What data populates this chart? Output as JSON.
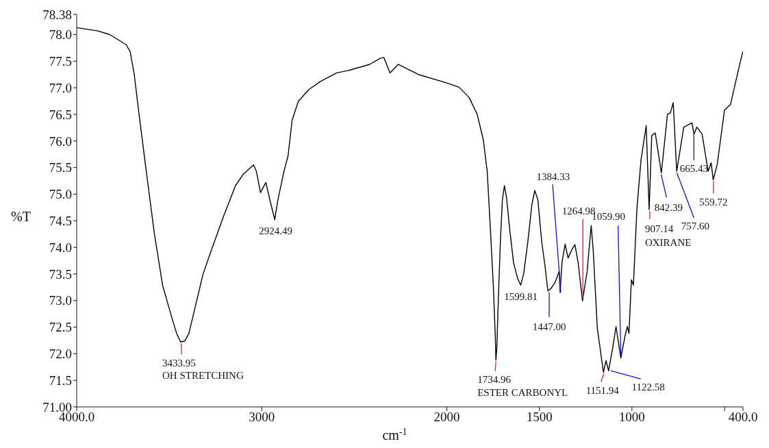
{
  "chart_data": {
    "type": "line",
    "xlabel": "cm$^{-1}$",
    "ylabel": "%T",
    "xlim": [
      4000,
      400
    ],
    "ylim": [
      71,
      78.38
    ],
    "xticks": [
      {
        "value": 4000,
        "label": "4000.0"
      },
      3000,
      2000,
      1500,
      1000,
      {
        "value": 500,
        "label": null
      },
      {
        "value": 400,
        "label": "400.0"
      }
    ],
    "yticks": [
      {
        "value": 71,
        "label": "71.00"
      },
      71.5,
      {
        "value": 72,
        "label": "72.0"
      },
      72.5,
      {
        "value": 73,
        "label": "73.0"
      },
      73.5,
      {
        "value": 74,
        "label": "74.0"
      },
      74.5,
      {
        "value": 75,
        "label": "75.0"
      },
      75.5,
      {
        "value": 76,
        "label": "76.0"
      },
      76.5,
      {
        "value": 77,
        "label": "77.0"
      },
      77.5,
      {
        "value": 78,
        "label": "78.0"
      },
      78.38
    ],
    "x": [
      4000,
      3886,
      3821,
      3733,
      3711,
      3689,
      3667,
      3624,
      3580,
      3536,
      3492,
      3460,
      3438,
      3416,
      3394,
      3361,
      3317,
      3274,
      3208,
      3142,
      3099,
      3044,
      3029,
      3007,
      2978,
      2956,
      2930,
      2913,
      2880,
      2858,
      2836,
      2803,
      2748,
      2683,
      2595,
      2526,
      2417,
      2362,
      2340,
      2307,
      2263,
      2154,
      2000,
      1934,
      1880,
      1836,
      1803,
      1782,
      1765,
      1749,
      1738,
      1735,
      1730,
      1722,
      1711,
      1700,
      1689,
      1678,
      1661,
      1640,
      1618,
      1601,
      1585,
      1563,
      1541,
      1525,
      1508,
      1487,
      1470,
      1454,
      1437,
      1415,
      1393,
      1388,
      1378,
      1361,
      1345,
      1324,
      1308,
      1291,
      1267,
      1242,
      1220,
      1209,
      1187,
      1154,
      1140,
      1126,
      1104,
      1086,
      1060,
      1038,
      1025,
      1016,
      1003,
      992,
      973,
      951,
      923,
      907,
      893,
      874,
      841,
      808,
      792,
      777,
      758,
      720,
      676,
      665,
      649,
      621,
      588,
      572,
      561,
      539,
      500,
      467,
      423,
      401
    ],
    "series": [
      {
        "color": "#000000",
        "values": [
          78.13,
          78.07,
          78.0,
          77.81,
          77.68,
          77.25,
          76.61,
          75.43,
          74.25,
          73.29,
          72.75,
          72.38,
          72.22,
          72.24,
          72.38,
          72.86,
          73.5,
          73.93,
          74.57,
          75.16,
          75.38,
          75.55,
          75.43,
          75.03,
          75.22,
          74.89,
          74.52,
          74.89,
          75.43,
          75.72,
          76.39,
          76.74,
          76.96,
          77.12,
          77.28,
          77.33,
          77.44,
          77.55,
          77.57,
          77.28,
          77.44,
          77.25,
          77.09,
          77.01,
          76.82,
          76.5,
          76.02,
          75.43,
          74.36,
          73.29,
          72.3,
          71.88,
          72.1,
          73.0,
          74.09,
          74.89,
          75.16,
          74.95,
          74.36,
          73.72,
          73.42,
          73.29,
          73.5,
          74.09,
          74.79,
          75.07,
          74.89,
          74.09,
          73.66,
          73.18,
          73.23,
          73.34,
          73.55,
          73.15,
          73.71,
          74.06,
          73.8,
          73.96,
          74.05,
          73.72,
          72.99,
          73.55,
          74.41,
          73.93,
          72.48,
          71.65,
          71.87,
          71.68,
          72.11,
          72.51,
          71.92,
          72.32,
          72.51,
          72.38,
          73.39,
          73.29,
          74.73,
          75.64,
          76.29,
          74.71,
          76.1,
          76.15,
          75.4,
          76.5,
          76.53,
          76.72,
          75.43,
          76.26,
          76.34,
          76.13,
          76.26,
          76.13,
          75.43,
          75.59,
          75.27,
          75.56,
          76.58,
          76.69,
          77.36,
          77.68
        ]
      }
    ],
    "annotations": [
      {
        "text": "2924.49",
        "x": 2924.49,
        "y": 74.52
      },
      {
        "text": "3433.95",
        "x": 3433.95,
        "y": 72.22
      },
      {
        "text": "OH STRETCHING",
        "x": 3433.95,
        "y": 72.22
      },
      {
        "text": "1734.96",
        "x": 1734.96,
        "y": 71.88
      },
      {
        "text": "ESTER  CARBONYL",
        "x": 1734.96,
        "y": 71.88
      },
      {
        "text": "1599.81",
        "x": 1599.81,
        "y": 73.29
      },
      {
        "text": "1447.00",
        "x": 1447.0,
        "y": 73.18
      },
      {
        "text": "1384.33",
        "x": 1384.33,
        "y": 73.15
      },
      {
        "text": "1264.98",
        "x": 1264.98,
        "y": 72.99
      },
      {
        "text": "1151.94",
        "x": 1151.94,
        "y": 71.65
      },
      {
        "text": "1122.58",
        "x": 1122.58,
        "y": 71.68
      },
      {
        "text": "1059.90",
        "x": 1059.9,
        "y": 71.92
      },
      {
        "text": "907.14",
        "x": 907.14,
        "y": 74.71
      },
      {
        "text": "OXIRANE",
        "x": 907.14,
        "y": 74.71
      },
      {
        "text": "842.39",
        "x": 842.39,
        "y": 75.4
      },
      {
        "text": "757.60",
        "x": 757.6,
        "y": 75.43
      },
      {
        "text": "665.43",
        "x": 665.43,
        "y": 76.13
      },
      {
        "text": "559.72",
        "x": 559.72,
        "y": 75.27
      }
    ]
  }
}
